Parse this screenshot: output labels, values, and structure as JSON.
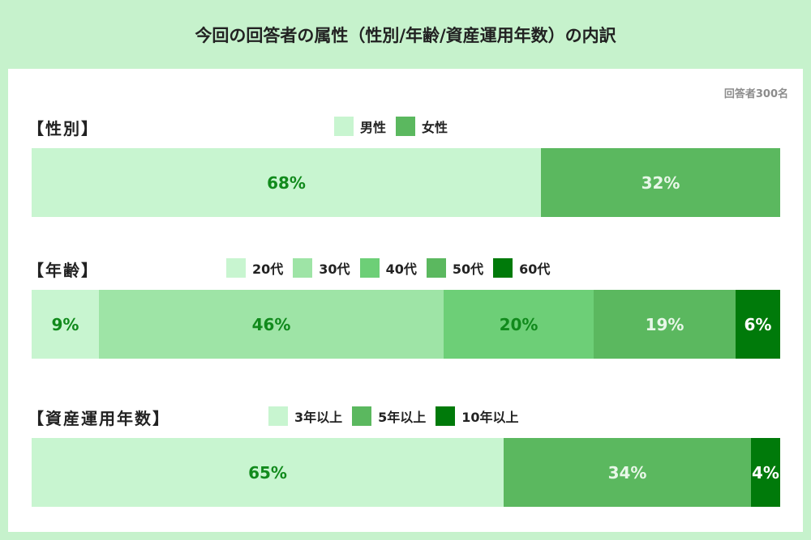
{
  "title": "今回の回答者の属性（性別/年齢/資産運用年数）の内訳",
  "respondents": "回答者300名",
  "chart_data": [
    {
      "type": "bar",
      "stacked": "100%",
      "title": "【性別】",
      "categories": [
        "男性",
        "女性"
      ],
      "values": [
        68,
        32
      ],
      "labels": [
        "68%",
        "32%"
      ],
      "colors": [
        "#c8f5d0",
        "#5bb85f"
      ],
      "label_colors": [
        "#118a1c",
        "#e8f7e8"
      ]
    },
    {
      "type": "bar",
      "stacked": "100%",
      "title": "【年齢】",
      "categories": [
        "20代",
        "30代",
        "40代",
        "50代",
        "60代"
      ],
      "values": [
        9,
        46,
        20,
        19,
        6
      ],
      "labels": [
        "9%",
        "46%",
        "20%",
        "19%",
        "6%"
      ],
      "colors": [
        "#c8f5d0",
        "#9ee4a6",
        "#6dcf77",
        "#5bb85f",
        "#007a0a"
      ],
      "label_colors": [
        "#118a1c",
        "#118a1c",
        "#118a1c",
        "#e8f7e8",
        "#ffffff"
      ]
    },
    {
      "type": "bar",
      "stacked": "100%",
      "title": "【資産運用年数】",
      "categories": [
        "3年以上",
        "5年以上",
        "10年以上"
      ],
      "values": [
        65,
        34,
        4
      ],
      "labels": [
        "65%",
        "34%",
        "4%"
      ],
      "colors": [
        "#c8f5d0",
        "#5bb85f",
        "#007a0a"
      ],
      "label_colors": [
        "#118a1c",
        "#e8f7e8",
        "#ffffff"
      ]
    }
  ]
}
